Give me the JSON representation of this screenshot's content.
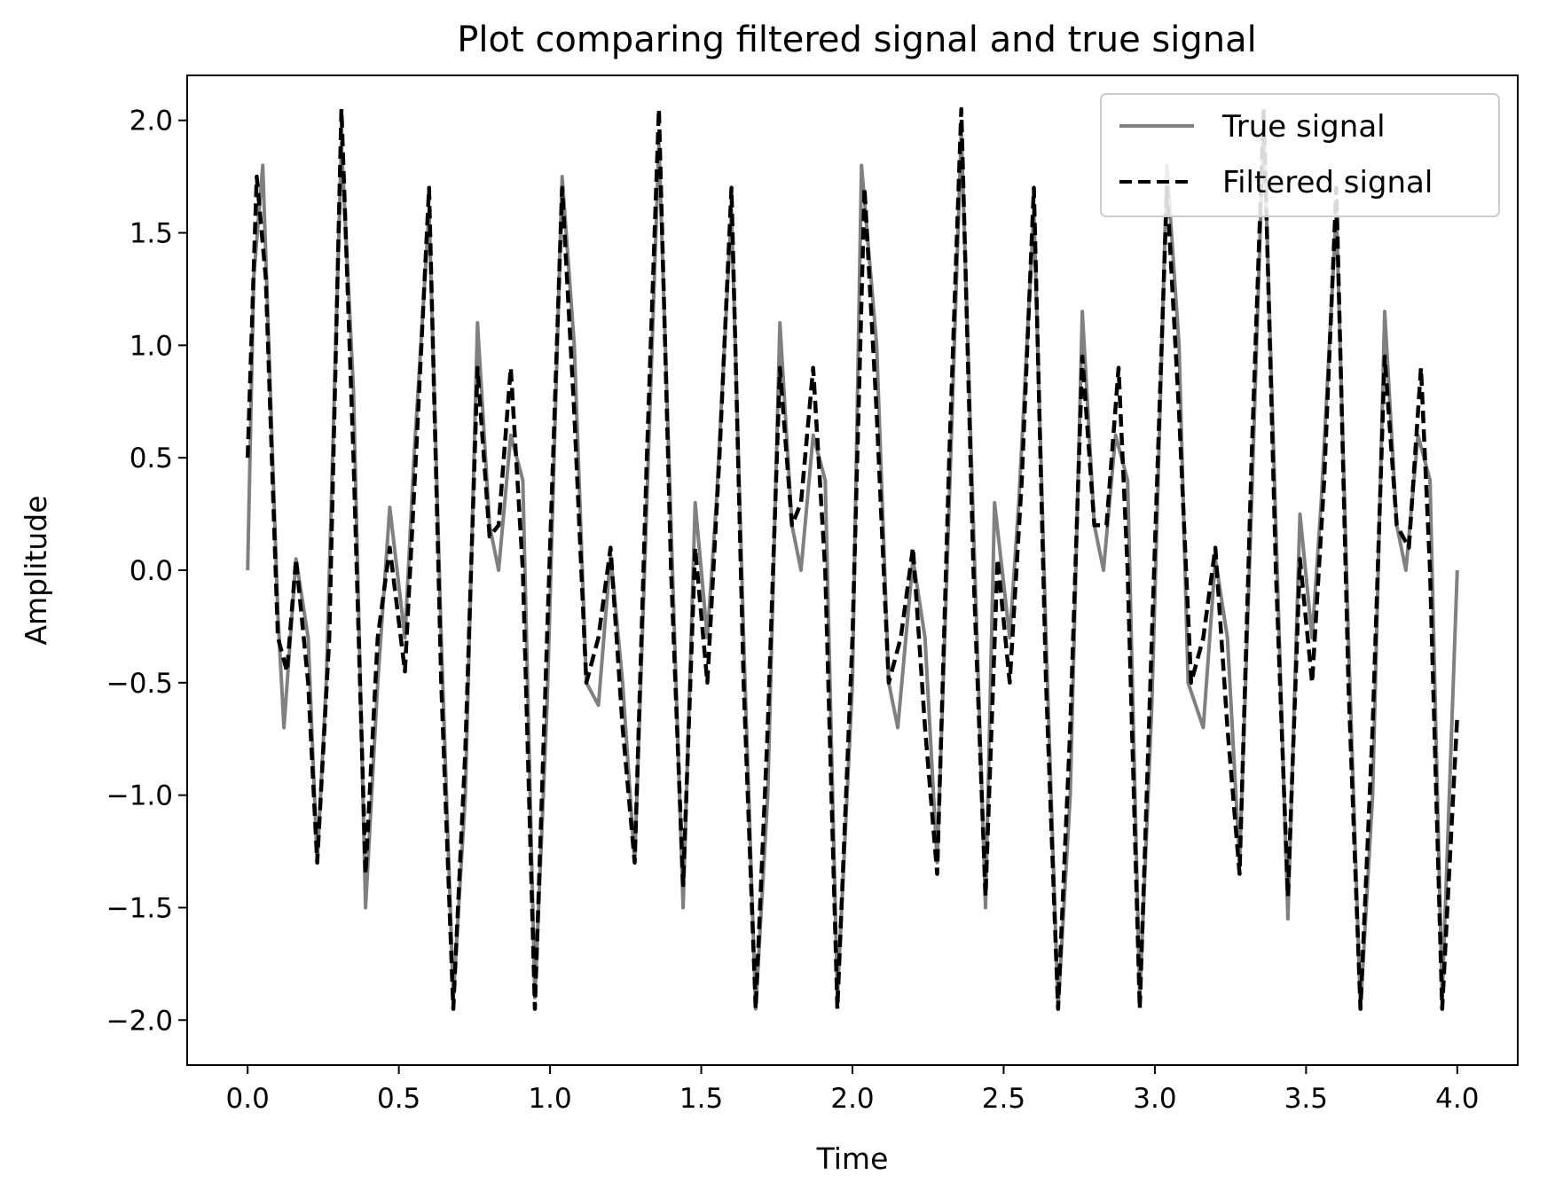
{
  "chart_data": {
    "type": "line",
    "title": "Plot comparing filtered signal and true signal",
    "xlabel": "Time",
    "ylabel": "Amplitude",
    "xlim": [
      -0.2,
      4.2
    ],
    "ylim": [
      -2.2,
      2.2
    ],
    "x_ticks": [
      0.0,
      0.5,
      1.0,
      1.5,
      2.0,
      2.5,
      3.0,
      3.5,
      4.0
    ],
    "x_tick_labels": [
      "0.0",
      "0.5",
      "1.0",
      "1.5",
      "2.0",
      "2.5",
      "3.0",
      "3.5",
      "4.0"
    ],
    "y_ticks": [
      -2.0,
      -1.5,
      -1.0,
      -0.5,
      0.0,
      0.5,
      1.0,
      1.5,
      2.0
    ],
    "y_tick_labels": [
      "−2.0",
      "−1.5",
      "−1.0",
      "−0.5",
      "0.0",
      "0.5",
      "1.0",
      "1.5",
      "2.0"
    ],
    "grid": false,
    "legend_position": "top-right",
    "series": [
      {
        "name": "True signal",
        "color": "#808080",
        "style": "solid",
        "x": [
          0.0,
          0.02,
          0.05,
          0.1,
          0.12,
          0.16,
          0.2,
          0.23,
          0.26,
          0.31,
          0.35,
          0.39,
          0.43,
          0.47,
          0.52,
          0.55,
          0.6,
          0.64,
          0.68,
          0.72,
          0.76,
          0.8,
          0.83,
          0.87,
          0.91,
          0.95,
          0.99,
          1.04,
          1.08,
          1.12,
          1.16,
          1.2,
          1.24,
          1.28,
          1.32,
          1.36,
          1.4,
          1.44,
          1.48,
          1.52,
          1.55,
          1.6,
          1.64,
          1.68,
          1.72,
          1.76,
          1.8,
          1.83,
          1.87,
          1.91,
          1.95,
          2.0,
          2.03,
          2.08,
          2.12,
          2.15,
          2.2,
          2.24,
          2.28,
          2.32,
          2.36,
          2.4,
          2.44,
          2.47,
          2.52,
          2.55,
          2.6,
          2.64,
          2.68,
          2.72,
          2.76,
          2.8,
          2.83,
          2.87,
          2.91,
          2.95,
          2.99,
          3.04,
          3.08,
          3.11,
          3.16,
          3.2,
          3.24,
          3.28,
          3.32,
          3.36,
          3.4,
          3.44,
          3.48,
          3.52,
          3.55,
          3.6,
          3.64,
          3.68,
          3.72,
          3.76,
          3.8,
          3.83,
          3.87,
          3.91,
          3.95,
          4.0
        ],
        "y": [
          0.0,
          1.3,
          1.8,
          -0.2,
          -0.7,
          0.05,
          -0.3,
          -1.3,
          -0.5,
          1.9,
          0.8,
          -1.5,
          -0.5,
          0.28,
          -0.3,
          0.5,
          1.6,
          -0.3,
          -1.9,
          -1.0,
          1.1,
          0.2,
          0.0,
          0.6,
          0.4,
          -1.9,
          -0.6,
          1.75,
          1.0,
          -0.5,
          -0.6,
          0.07,
          -0.5,
          -1.3,
          0.3,
          1.9,
          0.2,
          -1.5,
          0.3,
          -0.3,
          0.3,
          1.6,
          -0.3,
          -1.95,
          -1.0,
          1.1,
          0.2,
          0.0,
          0.6,
          0.4,
          -1.9,
          -0.5,
          1.8,
          1.0,
          -0.5,
          -0.7,
          0.05,
          -0.3,
          -1.3,
          0.3,
          1.95,
          0.2,
          -1.5,
          0.3,
          -0.3,
          0.3,
          1.6,
          -0.3,
          -1.95,
          -1.0,
          1.15,
          0.2,
          0.0,
          0.6,
          0.4,
          -1.9,
          -0.6,
          1.8,
          1.0,
          -0.5,
          -0.7,
          0.05,
          -0.3,
          -1.3,
          0.3,
          2.0,
          0.2,
          -1.55,
          0.25,
          -0.3,
          0.3,
          1.6,
          -0.3,
          -1.95,
          -1.0,
          1.15,
          0.2,
          0.0,
          0.6,
          0.4,
          -1.9,
          0.0
        ]
      },
      {
        "name": "Filtered signal",
        "color": "#000000",
        "style": "dashed",
        "x": [
          0.0,
          0.03,
          0.06,
          0.1,
          0.13,
          0.16,
          0.2,
          0.23,
          0.27,
          0.31,
          0.35,
          0.39,
          0.43,
          0.47,
          0.52,
          0.56,
          0.6,
          0.64,
          0.68,
          0.72,
          0.76,
          0.8,
          0.83,
          0.87,
          0.91,
          0.95,
          0.99,
          1.04,
          1.08,
          1.12,
          1.16,
          1.2,
          1.24,
          1.28,
          1.32,
          1.36,
          1.4,
          1.44,
          1.48,
          1.52,
          1.56,
          1.6,
          1.64,
          1.68,
          1.72,
          1.76,
          1.8,
          1.83,
          1.87,
          1.91,
          1.95,
          2.0,
          2.04,
          2.08,
          2.12,
          2.16,
          2.2,
          2.24,
          2.28,
          2.32,
          2.36,
          2.4,
          2.44,
          2.48,
          2.52,
          2.56,
          2.6,
          2.64,
          2.68,
          2.72,
          2.76,
          2.8,
          2.84,
          2.88,
          2.91,
          2.95,
          2.99,
          3.04,
          3.08,
          3.12,
          3.16,
          3.2,
          3.24,
          3.28,
          3.32,
          3.36,
          3.4,
          3.44,
          3.48,
          3.52,
          3.56,
          3.6,
          3.64,
          3.68,
          3.72,
          3.76,
          3.8,
          3.84,
          3.88,
          3.91,
          3.95,
          4.0
        ],
        "y": [
          0.5,
          1.75,
          1.3,
          -0.3,
          -0.45,
          0.05,
          -0.5,
          -1.3,
          -0.3,
          2.05,
          0.5,
          -1.35,
          -0.3,
          0.1,
          -0.45,
          0.6,
          1.7,
          -0.5,
          -1.95,
          -0.8,
          0.9,
          0.15,
          0.2,
          0.9,
          0.0,
          -1.95,
          -0.3,
          1.7,
          0.7,
          -0.5,
          -0.3,
          0.1,
          -0.7,
          -1.3,
          0.5,
          2.05,
          0.0,
          -1.4,
          0.1,
          -0.5,
          0.5,
          1.7,
          -0.5,
          -1.95,
          -0.7,
          0.9,
          0.2,
          0.3,
          0.9,
          0.0,
          -1.95,
          -0.3,
          1.7,
          0.7,
          -0.5,
          -0.3,
          0.1,
          -0.7,
          -1.35,
          0.5,
          2.05,
          0.0,
          -1.45,
          0.05,
          -0.5,
          0.4,
          1.7,
          -0.5,
          -1.95,
          -0.7,
          0.95,
          0.2,
          0.2,
          0.9,
          0.0,
          -1.95,
          -0.3,
          1.7,
          0.7,
          -0.5,
          -0.3,
          0.1,
          -0.7,
          -1.35,
          0.5,
          2.05,
          0.0,
          -1.45,
          0.05,
          -0.5,
          0.4,
          1.7,
          -0.5,
          -1.95,
          -0.7,
          0.95,
          0.2,
          0.1,
          0.9,
          0.0,
          -1.95,
          -0.65
        ]
      }
    ]
  }
}
